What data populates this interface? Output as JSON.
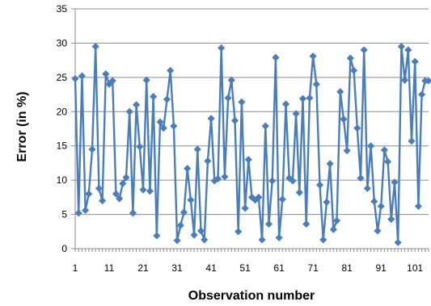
{
  "chart_data": {
    "type": "line",
    "title": "",
    "xlabel": "Observation number",
    "ylabel": "Error (in %)",
    "xlim": [
      1,
      105
    ],
    "ylim": [
      0,
      35
    ],
    "y_ticks": [
      0,
      5,
      10,
      15,
      20,
      25,
      30,
      35
    ],
    "x_ticks": [
      1,
      11,
      21,
      31,
      41,
      51,
      61,
      71,
      81,
      91,
      101
    ],
    "grid": "horizontal",
    "legend": "none",
    "colors": {
      "series": "#4a7ebb",
      "grid": "#8c8c8c",
      "axis": "#8c8c8c"
    },
    "marker": "diamond",
    "series": [
      {
        "x": [
          1,
          2,
          3,
          4,
          5,
          6,
          7,
          8,
          9,
          10,
          11,
          12,
          13,
          14,
          15,
          16,
          17,
          18,
          19,
          20,
          21,
          22,
          23,
          24,
          25,
          26,
          27,
          28,
          29,
          30,
          31,
          32,
          33,
          34,
          35,
          36,
          37,
          38,
          39,
          40,
          41,
          42,
          43,
          44,
          45,
          46,
          47,
          48,
          49,
          50,
          51,
          52,
          53,
          54,
          55,
          56,
          57,
          58,
          59,
          60,
          61,
          62,
          63,
          64,
          65,
          66,
          67,
          68,
          69,
          70,
          71,
          72,
          73,
          74,
          75,
          76,
          77,
          78,
          79,
          80,
          81,
          82,
          83,
          84,
          85,
          86,
          87,
          88,
          89,
          90,
          91,
          92,
          93,
          94,
          95,
          96,
          97,
          98,
          99,
          100,
          101,
          102,
          103,
          104,
          105
        ],
        "values": [
          24.8,
          5.2,
          25.2,
          5.6,
          8.0,
          14.5,
          29.5,
          8.8,
          7.0,
          25.5,
          24.0,
          24.5,
          8.0,
          7.3,
          9.5,
          10.4,
          20.0,
          5.2,
          21.0,
          14.9,
          8.6,
          24.6,
          8.4,
          22.2,
          1.9,
          18.5,
          17.6,
          21.8,
          26.0,
          17.9,
          1.2,
          3.4,
          5.3,
          11.7,
          7.1,
          2.0,
          14.5,
          2.6,
          1.3,
          12.8,
          19.0,
          9.9,
          10.2,
          29.3,
          10.5,
          22.0,
          24.6,
          18.7,
          2.5,
          21.4,
          5.9,
          13.0,
          7.5,
          7.1,
          7.5,
          1.3,
          17.9,
          3.6,
          9.9,
          27.9,
          1.6,
          7.2,
          21.1,
          10.3,
          9.9,
          19.7,
          8.2,
          21.9,
          3.6,
          22.0,
          28.1,
          24.0,
          9.3,
          1.3,
          6.8,
          12.4,
          2.8,
          4.1,
          22.9,
          18.9,
          14.3,
          27.8,
          26.0,
          17.6,
          10.3,
          29.0,
          8.8,
          15.0,
          6.9,
          2.6,
          6.2,
          14.4,
          12.7,
          4.3,
          9.7,
          0.9,
          29.5,
          24.6,
          29.0,
          15.7,
          27.3,
          6.2,
          22.5,
          24.5,
          24.5
        ]
      }
    ]
  }
}
